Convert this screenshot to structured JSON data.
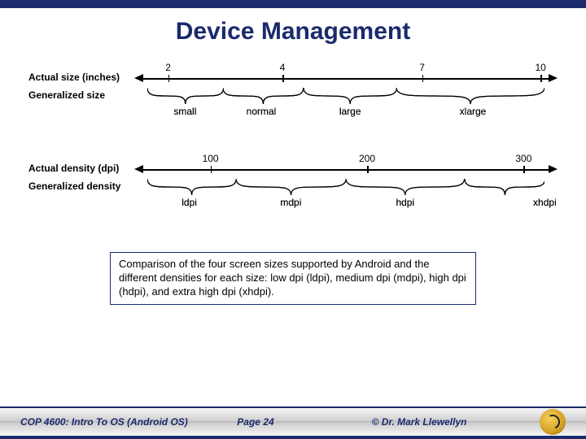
{
  "title": "Device Management",
  "size_diagram": {
    "actual_label": "Actual size (inches)",
    "generalized_label": "Generalized size",
    "axis": {
      "ticks": [
        {
          "label": "2",
          "pos_pct": 8
        },
        {
          "label": "4",
          "pos_pct": 35
        },
        {
          "label": "7",
          "pos_pct": 68
        },
        {
          "label": "10",
          "pos_pct": 96
        }
      ]
    },
    "braces": [
      {
        "label": "small",
        "left_pct": 3,
        "right_pct": 21,
        "label_pos_pct": 12
      },
      {
        "label": "normal",
        "left_pct": 21,
        "right_pct": 40,
        "label_pos_pct": 30
      },
      {
        "label": "large",
        "left_pct": 40,
        "right_pct": 62,
        "label_pos_pct": 51
      },
      {
        "label": "xlarge",
        "left_pct": 62,
        "right_pct": 97,
        "label_pos_pct": 80
      }
    ]
  },
  "density_diagram": {
    "actual_label": "Actual density (dpi)",
    "generalized_label": "Generalized density",
    "axis": {
      "ticks": [
        {
          "label": "100",
          "pos_pct": 18
        },
        {
          "label": "200",
          "pos_pct": 55
        },
        {
          "label": "300",
          "pos_pct": 92
        }
      ]
    },
    "braces": [
      {
        "label": "ldpi",
        "left_pct": 3,
        "right_pct": 24,
        "label_pos_pct": 13
      },
      {
        "label": "mdpi",
        "left_pct": 24,
        "right_pct": 50,
        "label_pos_pct": 37
      },
      {
        "label": "hdpi",
        "left_pct": 50,
        "right_pct": 78,
        "label_pos_pct": 64
      },
      {
        "label": "xhdpi",
        "left_pct": 78,
        "right_pct": 97,
        "label_pos_pct": 97
      }
    ]
  },
  "caption": "Comparison of the four screen sizes supported by Android and the different densities for each size: low dpi (ldpi), medium dpi (mdpi), high dpi (hdpi), and extra high dpi (xhdpi).",
  "footer": {
    "left": "COP 4600: Intro To OS  (Android OS)",
    "mid": "Page 24",
    "right": "© Dr. Mark Llewellyn"
  },
  "colors": {
    "accent": "#1a2a6c",
    "text": "#000000",
    "bg": "#ffffff"
  }
}
